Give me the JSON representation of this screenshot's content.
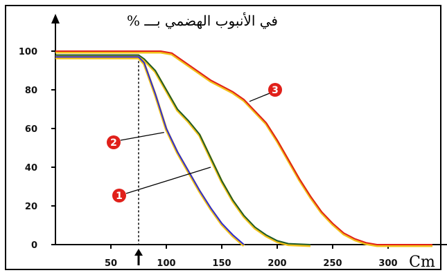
{
  "chart_data": {
    "type": "line",
    "title": "في الأنبوب الهضمي بـــ %",
    "xlabel_unit": "Cm",
    "x_ticks": [
      "50",
      "100",
      "150",
      "200",
      "250",
      "300"
    ],
    "y_ticks": [
      "0",
      "20",
      "40",
      "60",
      "80",
      "100"
    ],
    "xlim": [
      0,
      340
    ],
    "ylim": [
      0,
      100
    ],
    "grid": false,
    "marker_x": 75,
    "series": [
      {
        "label": "1",
        "color": "#2b2bd6",
        "points": [
          [
            0,
            97
          ],
          [
            75,
            97
          ],
          [
            80,
            94
          ],
          [
            90,
            78
          ],
          [
            100,
            60
          ],
          [
            110,
            48
          ],
          [
            120,
            38
          ],
          [
            130,
            28
          ],
          [
            140,
            19
          ],
          [
            150,
            11
          ],
          [
            160,
            5
          ],
          [
            170,
            0
          ]
        ]
      },
      {
        "label": "2",
        "color": "#1d5a2a",
        "points": [
          [
            0,
            98
          ],
          [
            75,
            98
          ],
          [
            80,
            96
          ],
          [
            90,
            90
          ],
          [
            100,
            80
          ],
          [
            110,
            70
          ],
          [
            120,
            64
          ],
          [
            130,
            57
          ],
          [
            140,
            45
          ],
          [
            150,
            33
          ],
          [
            160,
            23
          ],
          [
            170,
            15
          ],
          [
            180,
            9
          ],
          [
            190,
            5
          ],
          [
            200,
            2
          ],
          [
            210,
            0.5
          ],
          [
            230,
            0
          ]
        ]
      },
      {
        "label": "3",
        "color": "#e0201a",
        "points": [
          [
            0,
            100
          ],
          [
            95,
            100
          ],
          [
            105,
            99
          ],
          [
            120,
            93
          ],
          [
            140,
            85
          ],
          [
            160,
            79
          ],
          [
            170,
            75
          ],
          [
            180,
            69
          ],
          [
            190,
            63
          ],
          [
            200,
            54
          ],
          [
            210,
            44
          ],
          [
            220,
            34
          ],
          [
            230,
            25
          ],
          [
            240,
            17
          ],
          [
            250,
            11
          ],
          [
            260,
            6
          ],
          [
            270,
            3
          ],
          [
            280,
            1
          ],
          [
            290,
            0
          ],
          [
            340,
            0
          ]
        ]
      }
    ],
    "series_underline_color": "#f2c21a",
    "badge_color": "#e0201a"
  }
}
